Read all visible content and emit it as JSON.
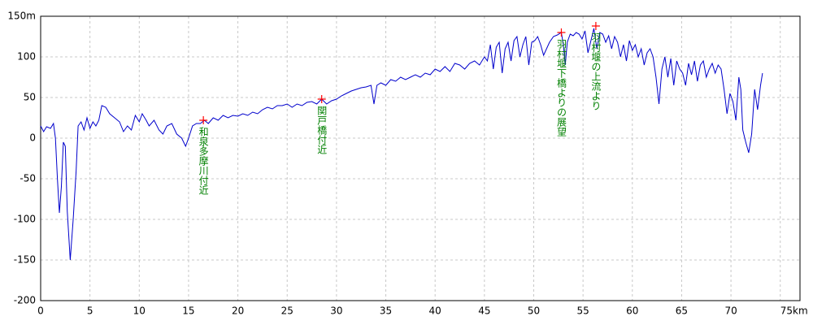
{
  "chart_data": {
    "type": "line",
    "x": [
      0,
      0.3,
      0.6,
      1.0,
      1.3,
      1.5,
      1.7,
      1.9,
      2.1,
      2.3,
      2.5,
      2.7,
      3.0,
      3.3,
      3.6,
      3.8,
      4.1,
      4.4,
      4.7,
      5.0,
      5.3,
      5.6,
      5.9,
      6.2,
      6.6,
      7.0,
      7.5,
      8.0,
      8.4,
      8.8,
      9.2,
      9.6,
      10.0,
      10.3,
      10.7,
      11.0,
      11.5,
      12.0,
      12.4,
      12.8,
      13.3,
      13.8,
      14.3,
      14.7,
      15.0,
      15.4,
      15.8,
      16.2,
      16.6,
      17.0,
      17.5,
      18.0,
      18.5,
      19.0,
      19.5,
      20.0,
      20.5,
      21.0,
      21.5,
      22.0,
      22.5,
      23.0,
      23.5,
      24.0,
      24.5,
      25.0,
      25.5,
      26.0,
      26.5,
      27.0,
      27.5,
      28.0,
      28.5,
      29.0,
      29.5,
      30.0,
      30.5,
      31.0,
      31.5,
      32.0,
      32.5,
      33.0,
      33.5,
      33.8,
      34.1,
      34.5,
      35.0,
      35.5,
      36.0,
      36.5,
      37.0,
      37.5,
      38.0,
      38.5,
      39.0,
      39.5,
      40.0,
      40.5,
      41.0,
      41.5,
      42.0,
      42.5,
      43.0,
      43.5,
      44.0,
      44.5,
      45.0,
      45.3,
      45.6,
      45.9,
      46.2,
      46.5,
      46.8,
      47.1,
      47.4,
      47.7,
      48.0,
      48.3,
      48.6,
      48.9,
      49.2,
      49.5,
      49.8,
      50.1,
      50.4,
      50.7,
      51.0,
      51.3,
      51.6,
      52.0,
      52.4,
      52.8,
      53.0,
      53.2,
      53.4,
      53.7,
      54.0,
      54.3,
      54.6,
      54.9,
      55.2,
      55.5,
      55.8,
      56.1,
      56.4,
      56.7,
      57.0,
      57.3,
      57.6,
      57.9,
      58.2,
      58.5,
      58.8,
      59.1,
      59.4,
      59.7,
      60.0,
      60.3,
      60.6,
      60.9,
      61.2,
      61.5,
      61.8,
      62.1,
      62.4,
      62.7,
      63.0,
      63.3,
      63.6,
      63.9,
      64.2,
      64.5,
      64.8,
      65.1,
      65.4,
      65.7,
      66.0,
      66.3,
      66.6,
      66.9,
      67.2,
      67.5,
      67.8,
      68.1,
      68.4,
      68.7,
      69.0,
      69.3,
      69.6,
      69.9,
      70.2,
      70.5,
      70.8,
      71.0,
      71.2,
      71.5,
      71.8,
      72.1,
      72.4,
      72.7,
      73.0,
      73.2
    ],
    "series": [
      {
        "color": "#0000cc",
        "values": [
          15,
          8,
          14,
          12,
          18,
          0,
          -50,
          -92,
          -60,
          -5,
          -10,
          -90,
          -150,
          -100,
          -40,
          15,
          20,
          10,
          25,
          12,
          20,
          15,
          22,
          40,
          38,
          30,
          25,
          20,
          8,
          15,
          10,
          28,
          20,
          30,
          22,
          15,
          22,
          10,
          5,
          15,
          18,
          5,
          0,
          -10,
          0,
          15,
          18,
          18,
          22,
          18,
          25,
          22,
          28,
          25,
          28,
          27,
          30,
          28,
          32,
          30,
          35,
          38,
          36,
          40,
          40,
          42,
          38,
          42,
          40,
          44,
          45,
          42,
          48,
          42,
          46,
          48,
          52,
          55,
          58,
          60,
          62,
          63,
          65,
          42,
          65,
          68,
          65,
          72,
          70,
          75,
          72,
          75,
          78,
          75,
          80,
          78,
          85,
          82,
          88,
          82,
          92,
          90,
          85,
          92,
          95,
          90,
          100,
          95,
          115,
          85,
          112,
          118,
          80,
          110,
          118,
          95,
          120,
          125,
          100,
          115,
          125,
          90,
          118,
          120,
          125,
          115,
          102,
          110,
          118,
          125,
          127,
          130,
          115,
          90,
          118,
          128,
          126,
          130,
          128,
          122,
          132,
          105,
          120,
          135,
          110,
          130,
          128,
          118,
          126,
          110,
          125,
          118,
          100,
          115,
          95,
          120,
          108,
          115,
          100,
          110,
          90,
          105,
          110,
          100,
          75,
          42,
          85,
          100,
          75,
          98,
          65,
          95,
          85,
          80,
          65,
          92,
          78,
          95,
          70,
          90,
          95,
          75,
          85,
          92,
          80,
          90,
          85,
          60,
          30,
          55,
          45,
          22,
          75,
          60,
          10,
          -5,
          -18,
          5,
          60,
          35,
          65,
          80
        ]
      }
    ],
    "annotations": [
      {
        "text": "和泉多摩川付近",
        "x": 16.5,
        "y": 22
      },
      {
        "text": "関戸橋付近",
        "x": 28.5,
        "y": 48
      },
      {
        "text": "羽村堰下橋よりの展望",
        "x": 52.8,
        "y": 130
      },
      {
        "text": "羽村堰の上流より",
        "x": 56.3,
        "y": 138
      }
    ],
    "marker_color": "#ff0000",
    "annotation_color": "#008000",
    "xlim": [
      0,
      77
    ],
    "xticks": [
      0,
      5,
      10,
      15,
      20,
      25,
      30,
      35,
      40,
      45,
      50,
      55,
      60,
      65,
      70,
      {
        "value": 75,
        "label": "75km"
      }
    ],
    "ylim": [
      -200,
      150
    ],
    "yticks": [
      -200,
      -150,
      -100,
      -50,
      0,
      50,
      100,
      {
        "value": 150,
        "label": "150m"
      }
    ],
    "grid": true
  }
}
